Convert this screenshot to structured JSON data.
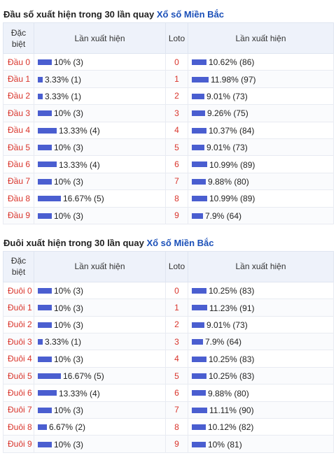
{
  "section1": {
    "title_prefix": "Đầu số xuất hiện trong 30 lần quay",
    "title_link": "Xổ số Miền Bắc",
    "headers": {
      "col1": "Đặc biệt",
      "col2": "Lần xuất hiện",
      "col3": "Loto",
      "col4": "Lần xuất hiện"
    },
    "rows": [
      {
        "label": "Đầu 0",
        "db_text": "10% (3)",
        "db_pct": 10,
        "loto": "0",
        "loto_text": "10.62% (86)",
        "loto_pct": 10.62
      },
      {
        "label": "Đầu 1",
        "db_text": "3.33% (1)",
        "db_pct": 3.33,
        "loto": "1",
        "loto_text": "11.98% (97)",
        "loto_pct": 11.98
      },
      {
        "label": "Đầu 2",
        "db_text": "3.33% (1)",
        "db_pct": 3.33,
        "loto": "2",
        "loto_text": "9.01% (73)",
        "loto_pct": 9.01
      },
      {
        "label": "Đầu 3",
        "db_text": "10% (3)",
        "db_pct": 10,
        "loto": "3",
        "loto_text": "9.26% (75)",
        "loto_pct": 9.26
      },
      {
        "label": "Đầu 4",
        "db_text": "13.33% (4)",
        "db_pct": 13.33,
        "loto": "4",
        "loto_text": "10.37% (84)",
        "loto_pct": 10.37
      },
      {
        "label": "Đầu 5",
        "db_text": "10% (3)",
        "db_pct": 10,
        "loto": "5",
        "loto_text": "9.01% (73)",
        "loto_pct": 9.01
      },
      {
        "label": "Đầu 6",
        "db_text": "13.33% (4)",
        "db_pct": 13.33,
        "loto": "6",
        "loto_text": "10.99% (89)",
        "loto_pct": 10.99
      },
      {
        "label": "Đầu 7",
        "db_text": "10% (3)",
        "db_pct": 10,
        "loto": "7",
        "loto_text": "9.88% (80)",
        "loto_pct": 9.88
      },
      {
        "label": "Đầu 8",
        "db_text": "16.67% (5)",
        "db_pct": 16.67,
        "loto": "8",
        "loto_text": "10.99% (89)",
        "loto_pct": 10.99
      },
      {
        "label": "Đầu 9",
        "db_text": "10% (3)",
        "db_pct": 10,
        "loto": "9",
        "loto_text": "7.9% (64)",
        "loto_pct": 7.9
      }
    ]
  },
  "section2": {
    "title_prefix": "Đuôi xuất hiện trong 30 lần quay",
    "title_link": "Xổ số Miền Bắc",
    "headers": {
      "col1": "Đặc biệt",
      "col2": "Lần xuất hiện",
      "col3": "Loto",
      "col4": "Lần xuất hiện"
    },
    "rows": [
      {
        "label": "Đuôi 0",
        "db_text": "10% (3)",
        "db_pct": 10,
        "loto": "0",
        "loto_text": "10.25% (83)",
        "loto_pct": 10.25
      },
      {
        "label": "Đuôi 1",
        "db_text": "10% (3)",
        "db_pct": 10,
        "loto": "1",
        "loto_text": "11.23% (91)",
        "loto_pct": 11.23
      },
      {
        "label": "Đuôi 2",
        "db_text": "10% (3)",
        "db_pct": 10,
        "loto": "2",
        "loto_text": "9.01% (73)",
        "loto_pct": 9.01
      },
      {
        "label": "Đuôi 3",
        "db_text": "3.33% (1)",
        "db_pct": 3.33,
        "loto": "3",
        "loto_text": "7.9% (64)",
        "loto_pct": 7.9
      },
      {
        "label": "Đuôi 4",
        "db_text": "10% (3)",
        "db_pct": 10,
        "loto": "4",
        "loto_text": "10.25% (83)",
        "loto_pct": 10.25
      },
      {
        "label": "Đuôi 5",
        "db_text": "16.67% (5)",
        "db_pct": 16.67,
        "loto": "5",
        "loto_text": "10.25% (83)",
        "loto_pct": 10.25
      },
      {
        "label": "Đuôi 6",
        "db_text": "13.33% (4)",
        "db_pct": 13.33,
        "loto": "6",
        "loto_text": "9.88% (80)",
        "loto_pct": 9.88
      },
      {
        "label": "Đuôi 7",
        "db_text": "10% (3)",
        "db_pct": 10,
        "loto": "7",
        "loto_text": "11.11% (90)",
        "loto_pct": 11.11
      },
      {
        "label": "Đuôi 8",
        "db_text": "6.67% (2)",
        "db_pct": 6.67,
        "loto": "8",
        "loto_text": "10.12% (82)",
        "loto_pct": 10.12
      },
      {
        "label": "Đuôi 9",
        "db_text": "10% (3)",
        "db_pct": 10,
        "loto": "9",
        "loto_text": "10% (81)",
        "loto_pct": 10
      }
    ]
  },
  "colors": {
    "bar": "#4a5ed0",
    "label": "#d9342b",
    "link": "#1a4fb8",
    "header_bg": "#eef2fa"
  }
}
